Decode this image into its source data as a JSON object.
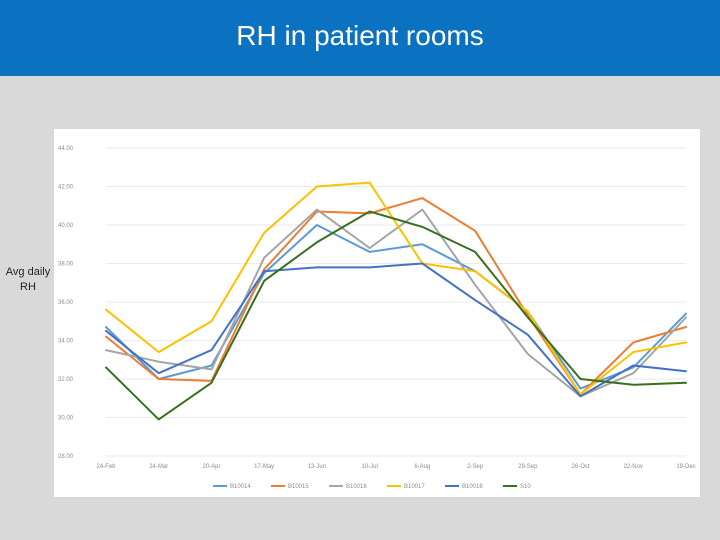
{
  "header": {
    "title": "RH in patient rooms"
  },
  "side_label": {
    "line1": "Avg daily",
    "line2": "RH"
  },
  "chart_data": {
    "type": "line",
    "title": "RH in patient rooms",
    "xlabel": "",
    "ylabel": "Avg daily RH",
    "ylim": [
      28,
      44
    ],
    "yticks": [
      "44.00",
      "42.00",
      "40.00",
      "38.00",
      "36.00",
      "34.00",
      "32.00",
      "30.00",
      "28.00"
    ],
    "categories": [
      "24-Feb",
      "24-Mar",
      "20-Apr",
      "17-May",
      "13-Jun",
      "10-Jul",
      "6-Aug",
      "2-Sep",
      "29-Sep",
      "26-Oct",
      "22-Nov",
      "19-Dec"
    ],
    "grid": true,
    "legend_position": "bottom",
    "series": [
      {
        "name": "B10014",
        "color": "#5b9bd5",
        "values": [
          34.7,
          32.0,
          32.7,
          37.5,
          40.0,
          38.6,
          39.0,
          37.6,
          35.5,
          31.5,
          32.6,
          35.4
        ]
      },
      {
        "name": "B10015",
        "color": "#ed7d31",
        "values": [
          34.2,
          32.0,
          31.9,
          37.7,
          40.7,
          40.6,
          41.4,
          39.7,
          35.3,
          31.2,
          33.9,
          34.7
        ]
      },
      {
        "name": "B10016",
        "color": "#a5a5a5",
        "values": [
          33.5,
          32.9,
          32.5,
          38.3,
          40.8,
          38.8,
          40.8,
          36.9,
          33.3,
          31.1,
          32.3,
          35.2
        ]
      },
      {
        "name": "B10017",
        "color": "#ffc000",
        "values": [
          35.6,
          33.4,
          35.0,
          39.6,
          42.0,
          42.2,
          38.0,
          37.6,
          35.5,
          31.2,
          33.4,
          33.9
        ]
      },
      {
        "name": "B10018",
        "color": "#4472c4",
        "values": [
          34.5,
          32.3,
          33.5,
          37.6,
          37.8,
          37.8,
          38.0,
          36.1,
          34.3,
          31.1,
          32.7,
          32.4
        ]
      },
      {
        "name": "S10",
        "color": "#38701f",
        "values": [
          32.6,
          29.9,
          31.8,
          37.1,
          39.1,
          40.7,
          39.9,
          38.6,
          35.2,
          32.0,
          31.7,
          31.8
        ]
      }
    ]
  }
}
